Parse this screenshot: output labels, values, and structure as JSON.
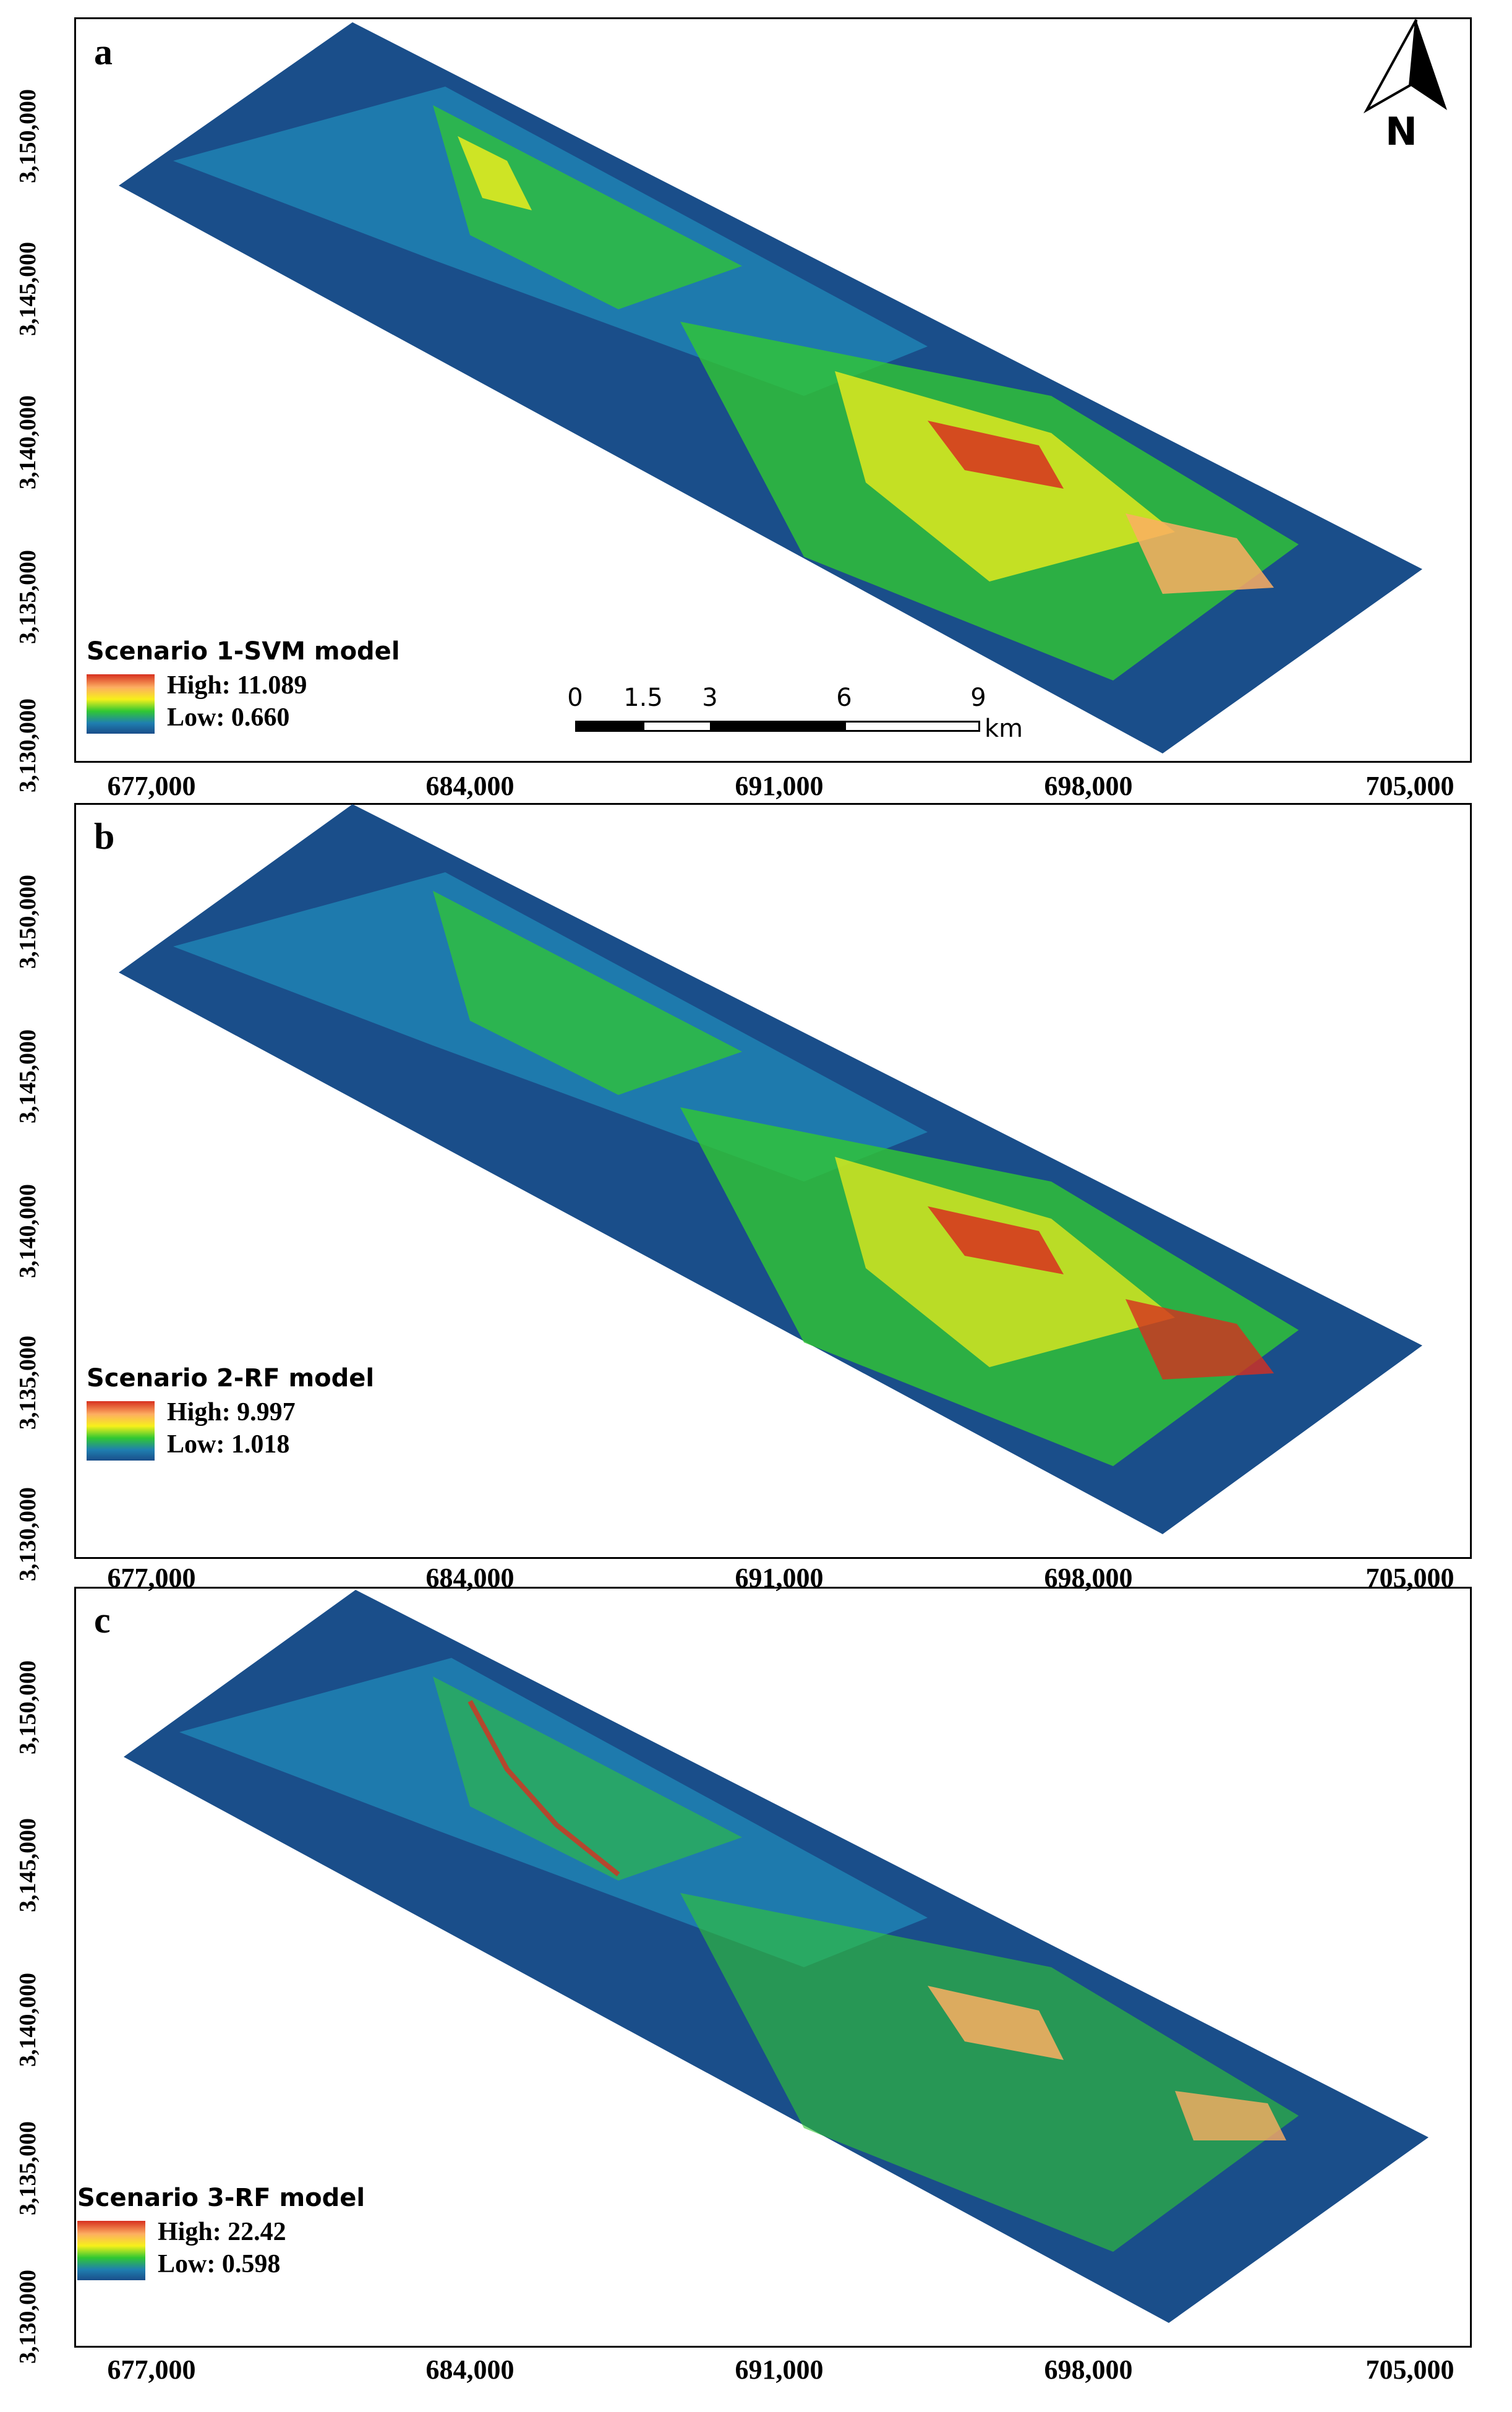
{
  "x_ticks": [
    "677,000",
    "684,000",
    "691,000",
    "698,000",
    "705,000"
  ],
  "y_ticks": [
    "3,150,000",
    "3,145,000",
    "3,140,000",
    "3,135,000",
    "3,130,000"
  ],
  "north_arrow": {
    "letter": "N"
  },
  "scale_bar": {
    "labels": [
      "0",
      "1.5",
      "3",
      "6",
      "9"
    ],
    "unit": "km"
  },
  "panels": [
    {
      "letter": "a",
      "legend_title": "Scenario 1-SVM model",
      "high": "High: 11.089",
      "low": "Low:  0.660"
    },
    {
      "letter": "b",
      "legend_title": "Scenario 2-RF model",
      "high": "High: 9.997",
      "low": "Low:  1.018"
    },
    {
      "letter": "c",
      "legend_title": "Scenario 3-RF model",
      "high": "High: 22.42",
      "low": "Low:  0.598"
    }
  ],
  "colors": {
    "high": "#d7301f",
    "mid_high": "#fdae61",
    "mid": "#f7f01a",
    "mid_low": "#31c832",
    "low": "#1a4e8a",
    "frame": "#000000"
  }
}
